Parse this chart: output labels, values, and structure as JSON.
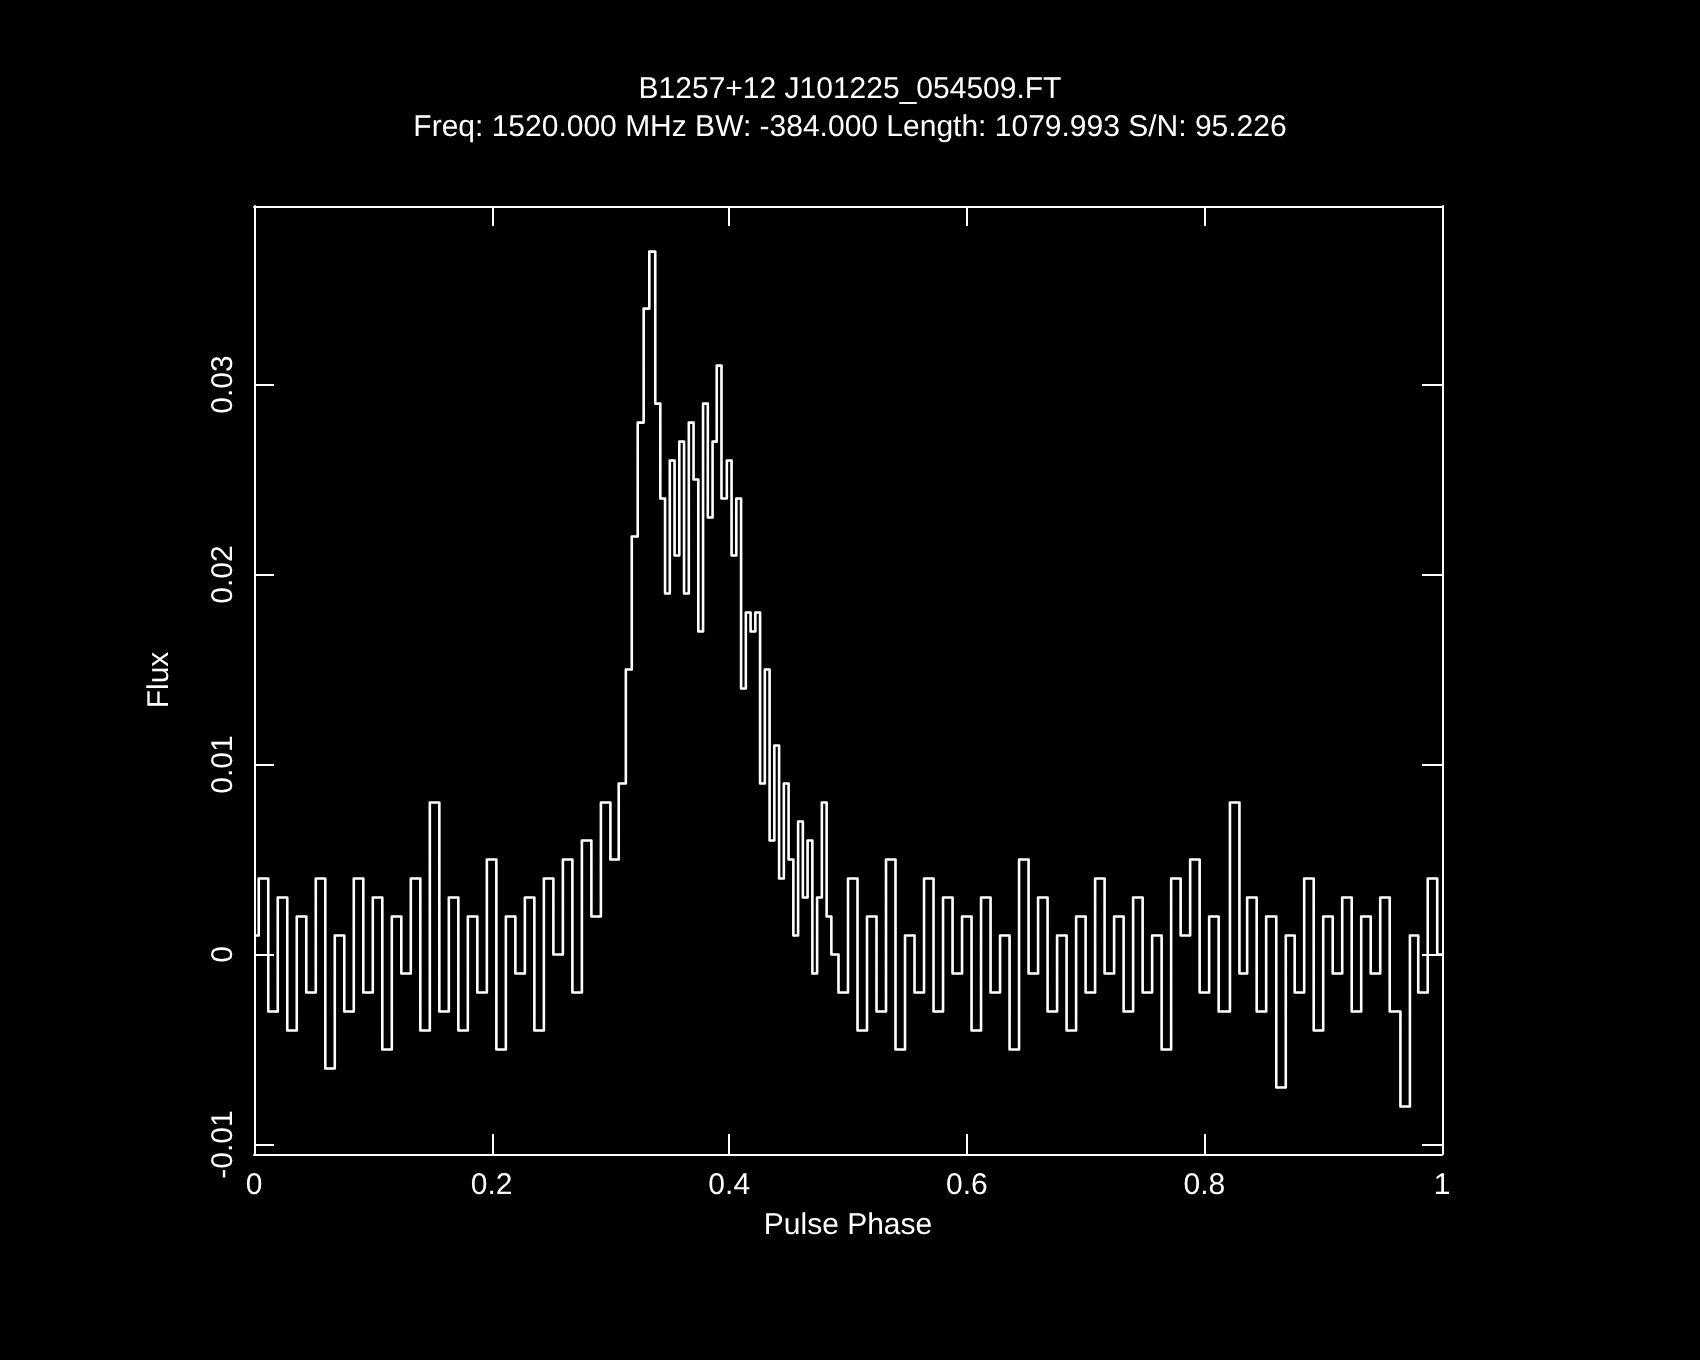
{
  "chart_data": {
    "type": "step",
    "title": "B1257+12 J101225_054509.FT",
    "subtitle": "Freq: 1520.000 MHz BW: -384.000 Length: 1079.993 S/N: 95.226",
    "xlabel": "Pulse Phase",
    "ylabel": "Flux",
    "xlim": [
      0,
      1
    ],
    "xticks": [
      0,
      0.2,
      0.4,
      0.6,
      0.8,
      1
    ],
    "ylim": [
      -0.0105,
      0.0394
    ],
    "yticks": [
      -0.01,
      0,
      0.01,
      0.02,
      0.03
    ],
    "grid": false,
    "marker": "none",
    "line_style": "solid",
    "series": [
      {
        "color": "#ffffff",
        "x": [
          0,
          0.008,
          0.016,
          0.024,
          0.032,
          0.04,
          0.048,
          0.056,
          0.064,
          0.072,
          0.08,
          0.088,
          0.096,
          0.104,
          0.112,
          0.12,
          0.128,
          0.136,
          0.144,
          0.152,
          0.16,
          0.168,
          0.176,
          0.184,
          0.192,
          0.2,
          0.208,
          0.216,
          0.224,
          0.232,
          0.24,
          0.248,
          0.256,
          0.264,
          0.272,
          0.28,
          0.288,
          0.296,
          0.304,
          0.31,
          0.316,
          0.32,
          0.326,
          0.33,
          0.3355,
          0.34,
          0.344,
          0.348,
          0.352,
          0.356,
          0.36,
          0.364,
          0.368,
          0.372,
          0.376,
          0.38,
          0.384,
          0.388,
          0.391,
          0.396,
          0.4,
          0.404,
          0.408,
          0.412,
          0.416,
          0.42,
          0.424,
          0.428,
          0.432,
          0.436,
          0.44,
          0.444,
          0.448,
          0.452,
          0.456,
          0.46,
          0.464,
          0.468,
          0.472,
          0.476,
          0.48,
          0.484,
          0.488,
          0.496,
          0.504,
          0.512,
          0.52,
          0.528,
          0.536,
          0.544,
          0.552,
          0.56,
          0.568,
          0.576,
          0.584,
          0.592,
          0.6,
          0.608,
          0.616,
          0.624,
          0.632,
          0.64,
          0.648,
          0.656,
          0.664,
          0.672,
          0.68,
          0.688,
          0.696,
          0.704,
          0.712,
          0.72,
          0.728,
          0.736,
          0.744,
          0.752,
          0.76,
          0.768,
          0.776,
          0.784,
          0.792,
          0.8,
          0.808,
          0.816,
          0.827,
          0.832,
          0.84,
          0.848,
          0.856,
          0.865,
          0.872,
          0.88,
          0.888,
          0.896,
          0.904,
          0.912,
          0.92,
          0.928,
          0.936,
          0.944,
          0.952,
          0.96,
          0.97,
          0.976,
          0.984,
          0.992,
          1
        ],
        "values": [
          0.001,
          0.004,
          -0.003,
          0.003,
          -0.004,
          0.002,
          -0.002,
          0.004,
          -0.006,
          0.001,
          -0.003,
          0.004,
          -0.002,
          0.003,
          -0.005,
          0.002,
          -0.001,
          0.004,
          -0.004,
          0.008,
          -0.003,
          0.003,
          -0.004,
          0.002,
          -0.002,
          0.005,
          -0.005,
          0.002,
          -0.001,
          0.003,
          -0.004,
          0.004,
          0,
          0.005,
          -0.002,
          0.006,
          0.002,
          0.008,
          0.005,
          0.009,
          0.015,
          0.022,
          0.028,
          0.034,
          0.037,
          0.029,
          0.024,
          0.019,
          0.026,
          0.021,
          0.027,
          0.019,
          0.028,
          0.025,
          0.017,
          0.029,
          0.023,
          0.027,
          0.031,
          0.024,
          0.026,
          0.021,
          0.024,
          0.014,
          0.018,
          0.017,
          0.018,
          0.009,
          0.015,
          0.006,
          0.011,
          0.004,
          0.009,
          0.005,
          0.001,
          0.007,
          0.003,
          0.006,
          -0.001,
          0.003,
          0.008,
          0.002,
          0,
          -0.002,
          0.004,
          -0.004,
          0.002,
          -0.003,
          0.005,
          -0.005,
          0.001,
          -0.002,
          0.004,
          -0.003,
          0.003,
          -0.001,
          0.002,
          -0.004,
          0.003,
          -0.002,
          0.001,
          -0.005,
          0.005,
          -0.001,
          0.003,
          -0.003,
          0.001,
          -0.004,
          0.002,
          -0.002,
          0.004,
          -0.001,
          0.002,
          -0.003,
          0.003,
          -0.002,
          0.001,
          -0.005,
          0.004,
          0.001,
          0.005,
          -0.002,
          0.002,
          -0.003,
          0.008,
          -0.001,
          0.003,
          -0.003,
          0.002,
          -0.007,
          0.001,
          -0.002,
          0.004,
          -0.004,
          0.002,
          -0.001,
          0.003,
          -0.003,
          0.002,
          -0.001,
          0.003,
          -0.003,
          -0.008,
          0.001,
          -0.002,
          0.004,
          0
        ]
      }
    ]
  }
}
